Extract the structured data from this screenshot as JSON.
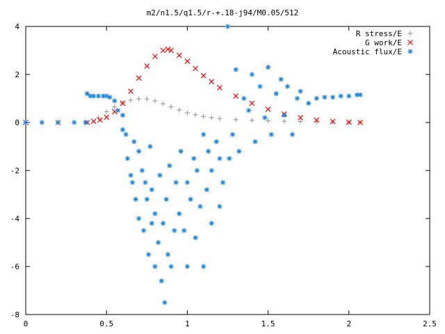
{
  "chart_data": {
    "type": "scatter",
    "title": "m2/n1.5/q1.5/r-+.18-j94/M0.05/512",
    "xlabel": "",
    "ylabel": "",
    "xlim": [
      0,
      2.5
    ],
    "ylim": [
      -8,
      4
    ],
    "xticks": [
      0,
      0.5,
      1,
      1.5,
      2,
      2.5
    ],
    "xtick_labels": [
      "0",
      "0.5",
      "1",
      "1.5",
      "2",
      "2.5"
    ],
    "yticks": [
      -8,
      -6,
      -4,
      -2,
      0,
      2,
      4
    ],
    "ytick_labels": [
      "-8",
      "-6",
      "-4",
      "-2",
      "0",
      "2",
      "4"
    ],
    "grid": false,
    "legend_position": "top-right",
    "series": [
      {
        "name": "R stress/E",
        "marker": "+",
        "color": "#a0a0a0",
        "x": [
          0.0,
          0.2,
          0.38,
          0.45,
          0.5,
          0.55,
          0.6,
          0.65,
          0.7,
          0.75,
          0.8,
          0.85,
          0.9,
          0.95,
          1.0,
          1.05,
          1.1,
          1.15,
          1.2,
          1.3,
          1.4,
          1.5,
          1.6,
          1.7,
          1.8,
          1.9,
          2.0,
          2.07
        ],
        "y": [
          0.0,
          0.0,
          0.0,
          0.2,
          0.45,
          0.65,
          0.82,
          0.93,
          0.98,
          0.98,
          0.9,
          0.78,
          0.65,
          0.52,
          0.4,
          0.32,
          0.25,
          0.2,
          0.16,
          0.12,
          0.09,
          0.07,
          0.05,
          0.04,
          0.03,
          0.02,
          0.01,
          0.01
        ]
      },
      {
        "name": "G work/E",
        "marker": "x",
        "color": "#ff0000",
        "x": [
          0.0,
          0.2,
          0.38,
          0.42,
          0.46,
          0.5,
          0.55,
          0.6,
          0.65,
          0.7,
          0.75,
          0.8,
          0.85,
          0.88,
          0.9,
          0.95,
          1.0,
          1.05,
          1.1,
          1.15,
          1.2,
          1.3,
          1.4,
          1.5,
          1.6,
          1.7,
          1.8,
          1.9,
          2.0,
          2.07
        ],
        "y": [
          0.0,
          0.0,
          0.0,
          0.05,
          0.1,
          0.22,
          0.45,
          0.8,
          1.3,
          1.85,
          2.35,
          2.75,
          3.0,
          3.05,
          3.0,
          2.8,
          2.55,
          2.25,
          1.95,
          1.7,
          1.45,
          1.1,
          0.8,
          0.55,
          0.35,
          0.2,
          0.1,
          0.04,
          0.01,
          0.0
        ]
      },
      {
        "name": "Acoustic flux/E",
        "marker": "*",
        "color": "#1a85e0",
        "x": [
          0.0,
          0.1,
          0.2,
          0.3,
          0.37,
          0.38,
          0.4,
          0.42,
          0.45,
          0.48,
          0.5,
          0.52,
          0.55,
          0.57,
          0.6,
          0.6,
          0.62,
          0.63,
          0.65,
          0.66,
          0.67,
          0.68,
          0.7,
          0.7,
          0.72,
          0.73,
          0.74,
          0.75,
          0.76,
          0.77,
          0.78,
          0.78,
          0.8,
          0.8,
          0.82,
          0.83,
          0.84,
          0.85,
          0.86,
          0.87,
          0.88,
          0.89,
          0.9,
          0.92,
          0.93,
          0.95,
          0.96,
          0.98,
          1.0,
          1.0,
          1.02,
          1.04,
          1.05,
          1.06,
          1.08,
          1.1,
          1.1,
          1.12,
          1.13,
          1.15,
          1.15,
          1.18,
          1.2,
          1.2,
          1.22,
          1.25,
          1.26,
          1.28,
          1.3,
          1.32,
          1.35,
          1.38,
          1.4,
          1.42,
          1.45,
          1.48,
          1.5,
          1.52,
          1.55,
          1.58,
          1.6,
          1.62,
          1.65,
          1.68,
          1.7,
          1.75,
          1.8,
          1.85,
          1.9,
          1.95,
          2.0,
          2.05,
          2.07
        ],
        "y": [
          0.0,
          0.0,
          0.0,
          0.0,
          0.0,
          1.2,
          1.1,
          1.1,
          1.1,
          1.1,
          1.1,
          1.05,
          0.9,
          0.5,
          0.3,
          -0.3,
          -0.5,
          -1.5,
          -2.2,
          -2.5,
          -0.8,
          -3.2,
          -1.2,
          -4.0,
          -2.0,
          -4.5,
          -2.5,
          -3.2,
          -5.5,
          -1.0,
          -4.2,
          -2.8,
          -6.0,
          -3.8,
          -5.0,
          -2.2,
          -6.6,
          -4.2,
          -7.5,
          -3.2,
          -5.5,
          -1.8,
          -6.0,
          -4.5,
          -2.5,
          -3.8,
          -1.2,
          -4.5,
          -6.0,
          -2.5,
          -3.2,
          -1.5,
          -4.8,
          -2.0,
          -3.5,
          -6.0,
          -0.5,
          -2.8,
          -1.2,
          -4.2,
          -2.0,
          -0.8,
          -3.5,
          -1.5,
          -2.5,
          4.0,
          -1.5,
          -0.5,
          2.2,
          -1.2,
          1.0,
          0.5,
          2.0,
          -0.8,
          1.5,
          0.2,
          2.3,
          -0.5,
          1.2,
          1.8,
          0.3,
          1.5,
          -0.5,
          1.0,
          1.3,
          0.8,
          1.0,
          1.05,
          1.05,
          1.1,
          1.1,
          1.15,
          1.15
        ]
      }
    ]
  }
}
